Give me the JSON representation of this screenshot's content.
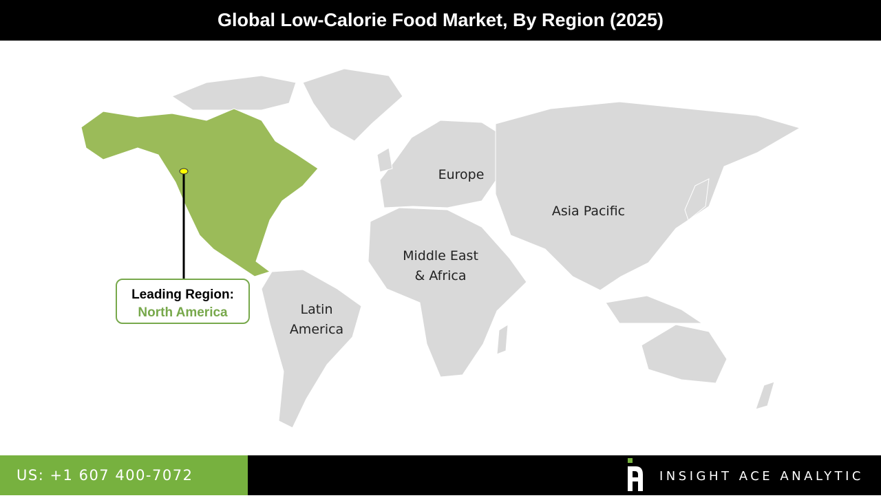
{
  "title": "Global Low-Calorie Food Market, By Region (2025)",
  "regions": {
    "north_america": "North America",
    "europe": "Europe",
    "asia_pacific": "Asia Pacific",
    "mea_line1": "Middle East",
    "mea_line2": "& Africa",
    "latam_line1": "Latin",
    "latam_line2": "America"
  },
  "callout": {
    "label": "Leading Region:",
    "value": "North America"
  },
  "colors": {
    "highlight": "#9bbb59",
    "land": "#d9d9d9",
    "accent": "#77b13f",
    "marker": "#ffff00"
  },
  "footer": {
    "phone": "US: +1 607 400-7072",
    "brand": "INSIGHT ACE ANALYTIC"
  }
}
